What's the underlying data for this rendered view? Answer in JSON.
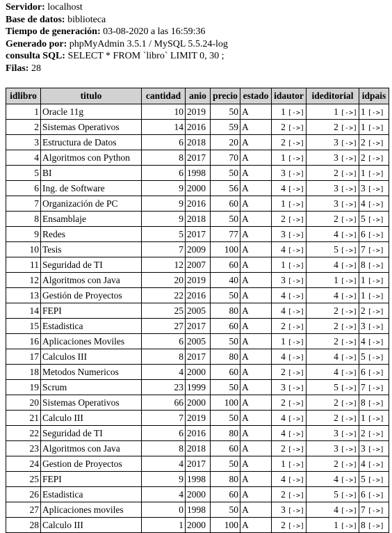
{
  "meta": [
    {
      "label": "Servidor:",
      "value": "localhost"
    },
    {
      "label": "Base de datos:",
      "value": "biblioteca"
    },
    {
      "label": "Tiempo de generación:",
      "value": "03-08-2020 a las 16:59:36"
    },
    {
      "label": "Generado por:",
      "value": "phpMyAdmin 3.5.1 / MySQL 5.5.24-log"
    },
    {
      "label": "consulta SQL:",
      "value": "SELECT * FROM `libro` LIMIT 0, 30 ;"
    },
    {
      "label": "Filas:",
      "value": "28"
    }
  ],
  "table": {
    "link_label": "[->]",
    "columns": [
      "idlibro",
      "titulo",
      "cantidad",
      "anio",
      "precio",
      "estado",
      "idautor",
      "ideditorial",
      "idpais"
    ],
    "rows": [
      [
        "1",
        "Oracle 11g",
        "10",
        "2019",
        "50",
        "A",
        "1",
        "1",
        "1"
      ],
      [
        "2",
        "Sistemas Operativos",
        "14",
        "2016",
        "59",
        "A",
        "2",
        "2",
        "1"
      ],
      [
        "3",
        "Estructura de Datos",
        "6",
        "2018",
        "20",
        "A",
        "2",
        "3",
        "2"
      ],
      [
        "4",
        "Algoritmos con Python",
        "8",
        "2017",
        "70",
        "A",
        "1",
        "3",
        "2"
      ],
      [
        "5",
        "BI",
        "6",
        "1998",
        "50",
        "A",
        "3",
        "2",
        "1"
      ],
      [
        "6",
        "Ing. de Software",
        "9",
        "2000",
        "56",
        "A",
        "4",
        "3",
        "3"
      ],
      [
        "7",
        "Organización de PC",
        "9",
        "2016",
        "60",
        "A",
        "1",
        "3",
        "4"
      ],
      [
        "8",
        "Ensamblaje",
        "9",
        "2018",
        "50",
        "A",
        "2",
        "2",
        "5"
      ],
      [
        "9",
        "Redes",
        "5",
        "2017",
        "77",
        "A",
        "3",
        "4",
        "6"
      ],
      [
        "10",
        "Tesis",
        "7",
        "2009",
        "100",
        "A",
        "4",
        "5",
        "7"
      ],
      [
        "11",
        "Seguridad de TI",
        "12",
        "2007",
        "60",
        "A",
        "1",
        "4",
        "8"
      ],
      [
        "12",
        "Algoritmos con Java",
        "20",
        "2019",
        "40",
        "A",
        "3",
        "1",
        "1"
      ],
      [
        "13",
        "Gestión de Proyectos",
        "22",
        "2016",
        "50",
        "A",
        "4",
        "4",
        "1"
      ],
      [
        "14",
        "FEPI",
        "25",
        "2005",
        "80",
        "A",
        "4",
        "2",
        "2"
      ],
      [
        "15",
        "Estadistica",
        "27",
        "2017",
        "60",
        "A",
        "2",
        "2",
        "3"
      ],
      [
        "16",
        "Aplicaciones Moviles",
        "6",
        "2005",
        "50",
        "A",
        "1",
        "2",
        "4"
      ],
      [
        "17",
        "Calculos III",
        "8",
        "2017",
        "80",
        "A",
        "4",
        "4",
        "5"
      ],
      [
        "18",
        "Metodos Numericos",
        "4",
        "2000",
        "60",
        "A",
        "2",
        "4",
        "6"
      ],
      [
        "19",
        "Scrum",
        "23",
        "1999",
        "50",
        "A",
        "3",
        "5",
        "7"
      ],
      [
        "20",
        "Sistemas Operativos",
        "66",
        "2000",
        "100",
        "A",
        "2",
        "2",
        "8"
      ],
      [
        "21",
        "Calculo III",
        "7",
        "2019",
        "50",
        "A",
        "4",
        "2",
        "1"
      ],
      [
        "22",
        "Seguridad de TI",
        "6",
        "2016",
        "80",
        "A",
        "4",
        "3",
        "2"
      ],
      [
        "23",
        "Algoritmos con Java",
        "8",
        "2018",
        "60",
        "A",
        "2",
        "3",
        "3"
      ],
      [
        "24",
        "Gestion de Proyectos",
        "4",
        "2017",
        "50",
        "A",
        "1",
        "2",
        "4"
      ],
      [
        "25",
        "FEPI",
        "9",
        "1998",
        "80",
        "A",
        "4",
        "4",
        "5"
      ],
      [
        "26",
        "Estadistica",
        "4",
        "2000",
        "60",
        "A",
        "2",
        "5",
        "6"
      ],
      [
        "27",
        "Aplicaciones moviles",
        "0",
        "1998",
        "50",
        "A",
        "3",
        "4",
        "7"
      ],
      [
        "28",
        "Calculo III",
        "1",
        "2000",
        "100",
        "A",
        "2",
        "1",
        "8"
      ]
    ]
  }
}
